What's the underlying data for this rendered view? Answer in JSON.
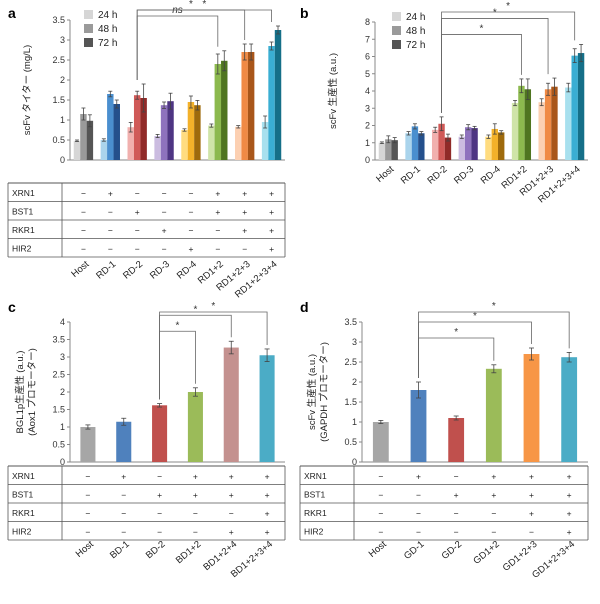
{
  "chart_data": [
    {
      "panel": "a",
      "type": "bar",
      "ylabel": "scFv タイター (mg/L)",
      "ylim": [
        0,
        3.5
      ],
      "yticks": [
        "0",
        "0.5",
        "1",
        "1.5",
        "2",
        "2.5",
        "3",
        "3.5"
      ],
      "categories": [
        "Host",
        "RD-1",
        "RD-2",
        "RD-3",
        "RD-4",
        "RD1+2",
        "RD1+2+3",
        "RD1+2+3+4"
      ],
      "series": [
        {
          "name": "24 h",
          "values": [
            0.48,
            0.5,
            0.82,
            0.6,
            0.75,
            0.86,
            0.83,
            0.95
          ],
          "errors": [
            0.02,
            0.03,
            0.12,
            0.04,
            0.03,
            0.04,
            0.03,
            0.15
          ]
        },
        {
          "name": "48 h",
          "values": [
            1.15,
            1.65,
            1.62,
            1.37,
            1.45,
            2.4,
            2.7,
            2.85
          ],
          "errors": [
            0.15,
            0.07,
            0.1,
            0.08,
            0.15,
            0.25,
            0.2,
            0.1
          ]
        },
        {
          "name": "72 h",
          "values": [
            0.98,
            1.4,
            1.55,
            1.47,
            1.37,
            2.48,
            2.7,
            3.25
          ],
          "errors": [
            0.15,
            0.1,
            0.35,
            0.2,
            0.12,
            0.25,
            0.2,
            0.1
          ]
        }
      ],
      "colors": [
        [
          "#d6d6d6",
          "#9a9a9a",
          "#555555"
        ],
        [
          "#aad4ec",
          "#4a8fcf",
          "#24508c"
        ],
        [
          "#f1b0ae",
          "#d05a58",
          "#902a28"
        ],
        [
          "#cbbce0",
          "#8e72bd",
          "#4e3583"
        ],
        [
          "#ffdc80",
          "#f3b12a",
          "#9e6a0c"
        ],
        [
          "#cfe4a8",
          "#8cb94e",
          "#4f7520"
        ],
        [
          "#fcd0b2",
          "#f08a45",
          "#a9561a"
        ],
        [
          "#a8e0ee",
          "#3aaed3",
          "#156f88"
        ]
      ],
      "significance": [
        {
          "from": "RD-2",
          "to": "RD1+2",
          "label": "ns"
        },
        {
          "from": "RD-2",
          "to": "RD1+2+3",
          "label": "*"
        },
        {
          "from": "RD-2",
          "to": "RD1+2+3+4",
          "label": "*"
        }
      ],
      "table": {
        "rows": [
          "XRN1",
          "BST1",
          "RKR1",
          "HIR2"
        ],
        "cells": [
          [
            "−",
            "+",
            "−",
            "−",
            "−",
            "+",
            "+",
            "+"
          ],
          [
            "−",
            "−",
            "+",
            "−",
            "−",
            "+",
            "+",
            "+"
          ],
          [
            "−",
            "−",
            "−",
            "+",
            "−",
            "−",
            "+",
            "+"
          ],
          [
            "−",
            "−",
            "−",
            "−",
            "+",
            "−",
            "−",
            "+"
          ]
        ]
      }
    },
    {
      "panel": "b",
      "type": "bar",
      "ylabel": "scFv 生産性 (a.u.)",
      "ylim": [
        0,
        8
      ],
      "yticks": [
        "0",
        "1",
        "2",
        "3",
        "4",
        "5",
        "6",
        "7",
        "8"
      ],
      "categories": [
        "Host",
        "RD-1",
        "RD-2",
        "RD-3",
        "RD-4",
        "RD1+2",
        "RD1+2+3",
        "RD1+2+3+4"
      ],
      "series": [
        {
          "name": "24 h",
          "values": [
            1.0,
            1.55,
            1.75,
            1.35,
            1.35,
            3.3,
            3.35,
            4.2
          ],
          "errors": [
            0.05,
            0.1,
            0.15,
            0.1,
            0.1,
            0.15,
            0.2,
            0.25
          ]
        },
        {
          "name": "48 h",
          "values": [
            1.2,
            1.95,
            2.1,
            1.9,
            1.8,
            4.3,
            4.1,
            6.05
          ],
          "errors": [
            0.2,
            0.15,
            0.4,
            0.15,
            0.3,
            0.4,
            0.35,
            0.4
          ]
        },
        {
          "name": "72 h",
          "values": [
            1.15,
            1.55,
            1.3,
            1.85,
            1.6,
            4.1,
            4.25,
            6.2
          ],
          "errors": [
            0.15,
            0.1,
            0.2,
            0.1,
            0.1,
            0.6,
            0.5,
            0.5
          ]
        }
      ],
      "significance": [
        {
          "from": "RD-2",
          "to": "RD1+2",
          "label": "*"
        },
        {
          "from": "RD-2",
          "to": "RD1+2+3",
          "label": "*"
        },
        {
          "from": "RD-2",
          "to": "RD1+2+3+4",
          "label": "*"
        }
      ]
    },
    {
      "panel": "c",
      "type": "bar",
      "ylabel": "BGL1p生産性 (a.u.)",
      "ylabel2": "(Aox1 プロモーター)",
      "ylim": [
        0,
        4
      ],
      "yticks": [
        "0",
        "0.5",
        "1",
        "1.5",
        "2",
        "2.5",
        "3",
        "3.5",
        "4"
      ],
      "categories": [
        "Host",
        "BD-1",
        "BD-2",
        "BD1+2",
        "BD1+2+4",
        "BD1+2+3+4"
      ],
      "values": [
        1.0,
        1.15,
        1.62,
        2.0,
        3.27,
        3.05
      ],
      "errors": [
        0.06,
        0.1,
        0.05,
        0.12,
        0.18,
        0.18
      ],
      "colors": [
        "#a6a6a6",
        "#4f81bd",
        "#c0504d",
        "#9bbb59",
        "#c4918f",
        "#4bacc6"
      ],
      "significance": [
        {
          "from": "BD-2",
          "to": "BD1+2",
          "label": "*"
        },
        {
          "from": "BD-2",
          "to": "BD1+2+4",
          "label": "*"
        },
        {
          "from": "BD-2",
          "to": "BD1+2+3+4",
          "label": "*"
        }
      ],
      "table": {
        "rows": [
          "XRN1",
          "BST1",
          "RKR1",
          "HIR2"
        ],
        "cells": [
          [
            "−",
            "+",
            "−",
            "+",
            "+",
            "+"
          ],
          [
            "−",
            "−",
            "+",
            "+",
            "+",
            "+"
          ],
          [
            "−",
            "−",
            "−",
            "−",
            "−",
            "+"
          ],
          [
            "−",
            "−",
            "−",
            "−",
            "+",
            "+"
          ]
        ]
      }
    },
    {
      "panel": "d",
      "type": "bar",
      "ylabel": "scFv 生産性 (a.u.)",
      "ylabel2": "(GAPDH プロモーター)",
      "ylim": [
        0,
        3.5
      ],
      "yticks": [
        "0",
        "0.5",
        "1",
        "1.5",
        "2",
        "2.5",
        "3",
        "3.5"
      ],
      "categories": [
        "Host",
        "GD-1",
        "GD-2",
        "GD1+2",
        "GD1+2+3",
        "GD1+2+3+4"
      ],
      "values": [
        1.0,
        1.8,
        1.1,
        2.33,
        2.7,
        2.62
      ],
      "errors": [
        0.04,
        0.2,
        0.05,
        0.1,
        0.15,
        0.12
      ],
      "colors": [
        "#a6a6a6",
        "#4f81bd",
        "#c0504d",
        "#9bbb59",
        "#f79646",
        "#4bacc6"
      ],
      "significance": [
        {
          "from": "GD-1",
          "to": "GD1+2",
          "label": "*"
        },
        {
          "from": "GD-1",
          "to": "GD1+2+3",
          "label": "*"
        },
        {
          "from": "GD-1",
          "to": "GD1+2+3+4",
          "label": "*"
        }
      ],
      "table": {
        "rows": [
          "XRN1",
          "BST1",
          "RKR1",
          "HIR2"
        ],
        "cells": [
          [
            "−",
            "+",
            "−",
            "+",
            "+",
            "+"
          ],
          [
            "−",
            "−",
            "+",
            "+",
            "+",
            "+"
          ],
          [
            "−",
            "−",
            "−",
            "−",
            "+",
            "+"
          ],
          [
            "−",
            "−",
            "−",
            "−",
            "−",
            "+"
          ]
        ]
      }
    }
  ]
}
